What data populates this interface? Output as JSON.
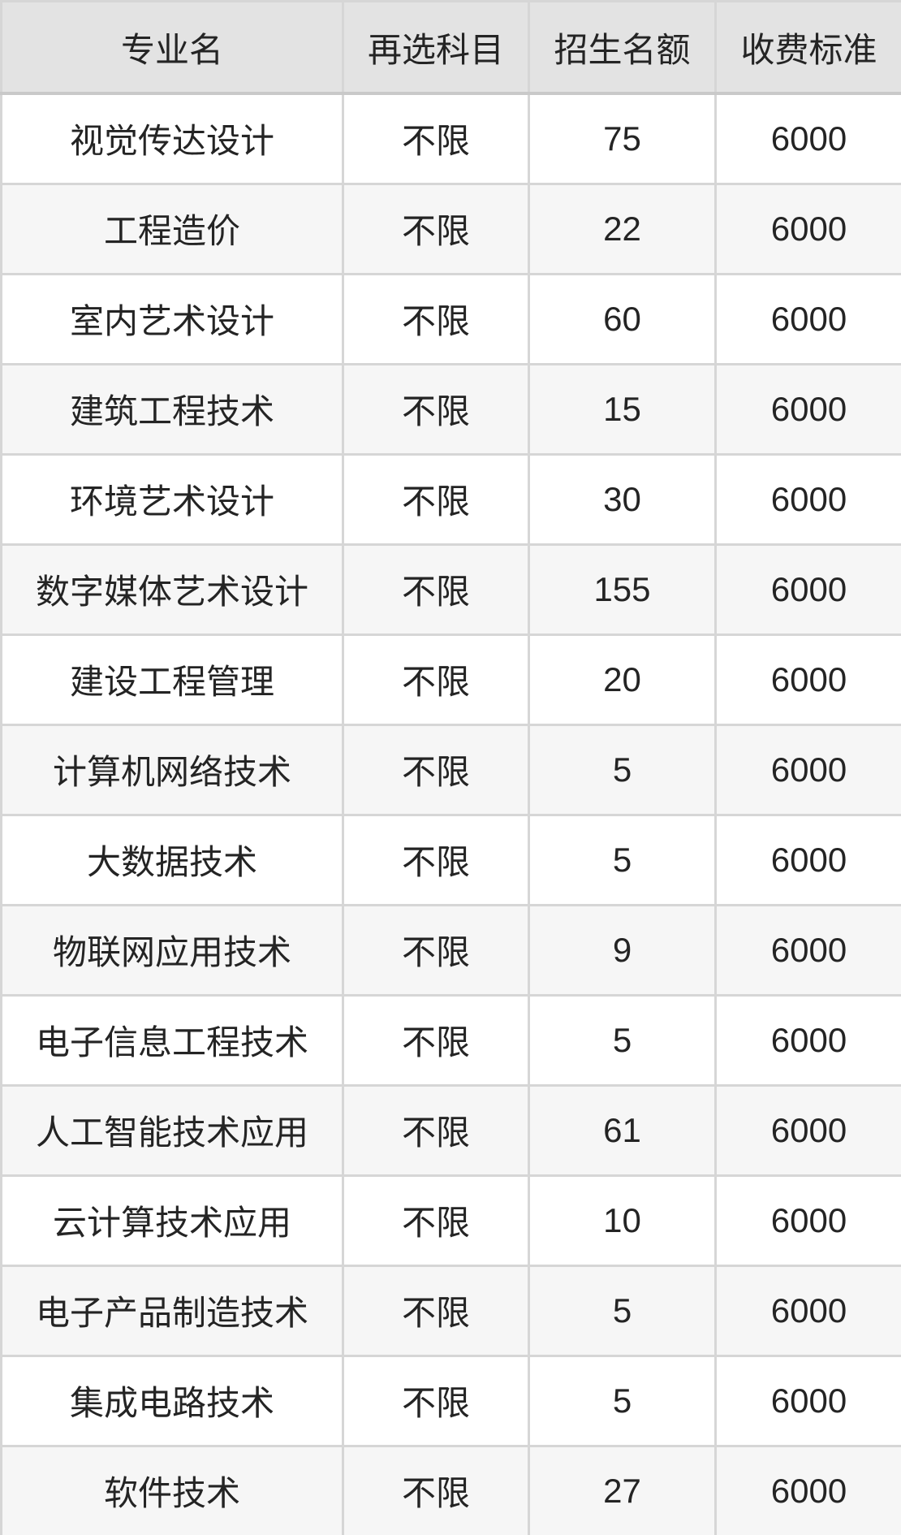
{
  "table": {
    "columns": [
      {
        "key": "major",
        "label": "专业名"
      },
      {
        "key": "subjects",
        "label": "再选科目"
      },
      {
        "key": "quota",
        "label": "招生名额"
      },
      {
        "key": "fee",
        "label": "收费标准"
      }
    ],
    "rows": [
      {
        "major": "视觉传达设计",
        "subjects": "不限",
        "quota": "75",
        "fee": "6000"
      },
      {
        "major": "工程造价",
        "subjects": "不限",
        "quota": "22",
        "fee": "6000"
      },
      {
        "major": "室内艺术设计",
        "subjects": "不限",
        "quota": "60",
        "fee": "6000"
      },
      {
        "major": "建筑工程技术",
        "subjects": "不限",
        "quota": "15",
        "fee": "6000"
      },
      {
        "major": "环境艺术设计",
        "subjects": "不限",
        "quota": "30",
        "fee": "6000"
      },
      {
        "major": "数字媒体艺术设计",
        "subjects": "不限",
        "quota": "155",
        "fee": "6000"
      },
      {
        "major": "建设工程管理",
        "subjects": "不限",
        "quota": "20",
        "fee": "6000"
      },
      {
        "major": "计算机网络技术",
        "subjects": "不限",
        "quota": "5",
        "fee": "6000"
      },
      {
        "major": "大数据技术",
        "subjects": "不限",
        "quota": "5",
        "fee": "6000"
      },
      {
        "major": "物联网应用技术",
        "subjects": "不限",
        "quota": "9",
        "fee": "6000"
      },
      {
        "major": "电子信息工程技术",
        "subjects": "不限",
        "quota": "5",
        "fee": "6000"
      },
      {
        "major": "人工智能技术应用",
        "subjects": "不限",
        "quota": "61",
        "fee": "6000"
      },
      {
        "major": "云计算技术应用",
        "subjects": "不限",
        "quota": "10",
        "fee": "6000"
      },
      {
        "major": "电子产品制造技术",
        "subjects": "不限",
        "quota": "5",
        "fee": "6000"
      },
      {
        "major": "集成电路技术",
        "subjects": "不限",
        "quota": "5",
        "fee": "6000"
      },
      {
        "major": "软件技术",
        "subjects": "不限",
        "quota": "27",
        "fee": "6000"
      }
    ]
  },
  "colors": {
    "header_bg": "#e3e3e3",
    "row_bg": "#ffffff",
    "row_alt_bg": "#f6f6f6",
    "border": "#d6d6d6",
    "header_border": "#c9c9c9",
    "text": "#242424"
  }
}
